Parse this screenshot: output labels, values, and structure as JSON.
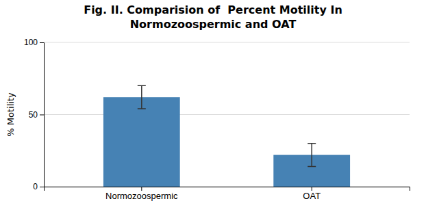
{
  "chart_data": {
    "type": "bar",
    "title": [
      "Fig. II. Comparision of  Percent Motility In",
      "Normozoospermic and OAT"
    ],
    "categories": [
      "Normozoospermic",
      "OAT"
    ],
    "values": [
      62,
      22
    ],
    "errors": [
      8,
      8
    ],
    "y_label": "% Motility",
    "ylim": [
      0,
      100
    ],
    "yticks": [
      0,
      50,
      100
    ],
    "grid": true
  }
}
